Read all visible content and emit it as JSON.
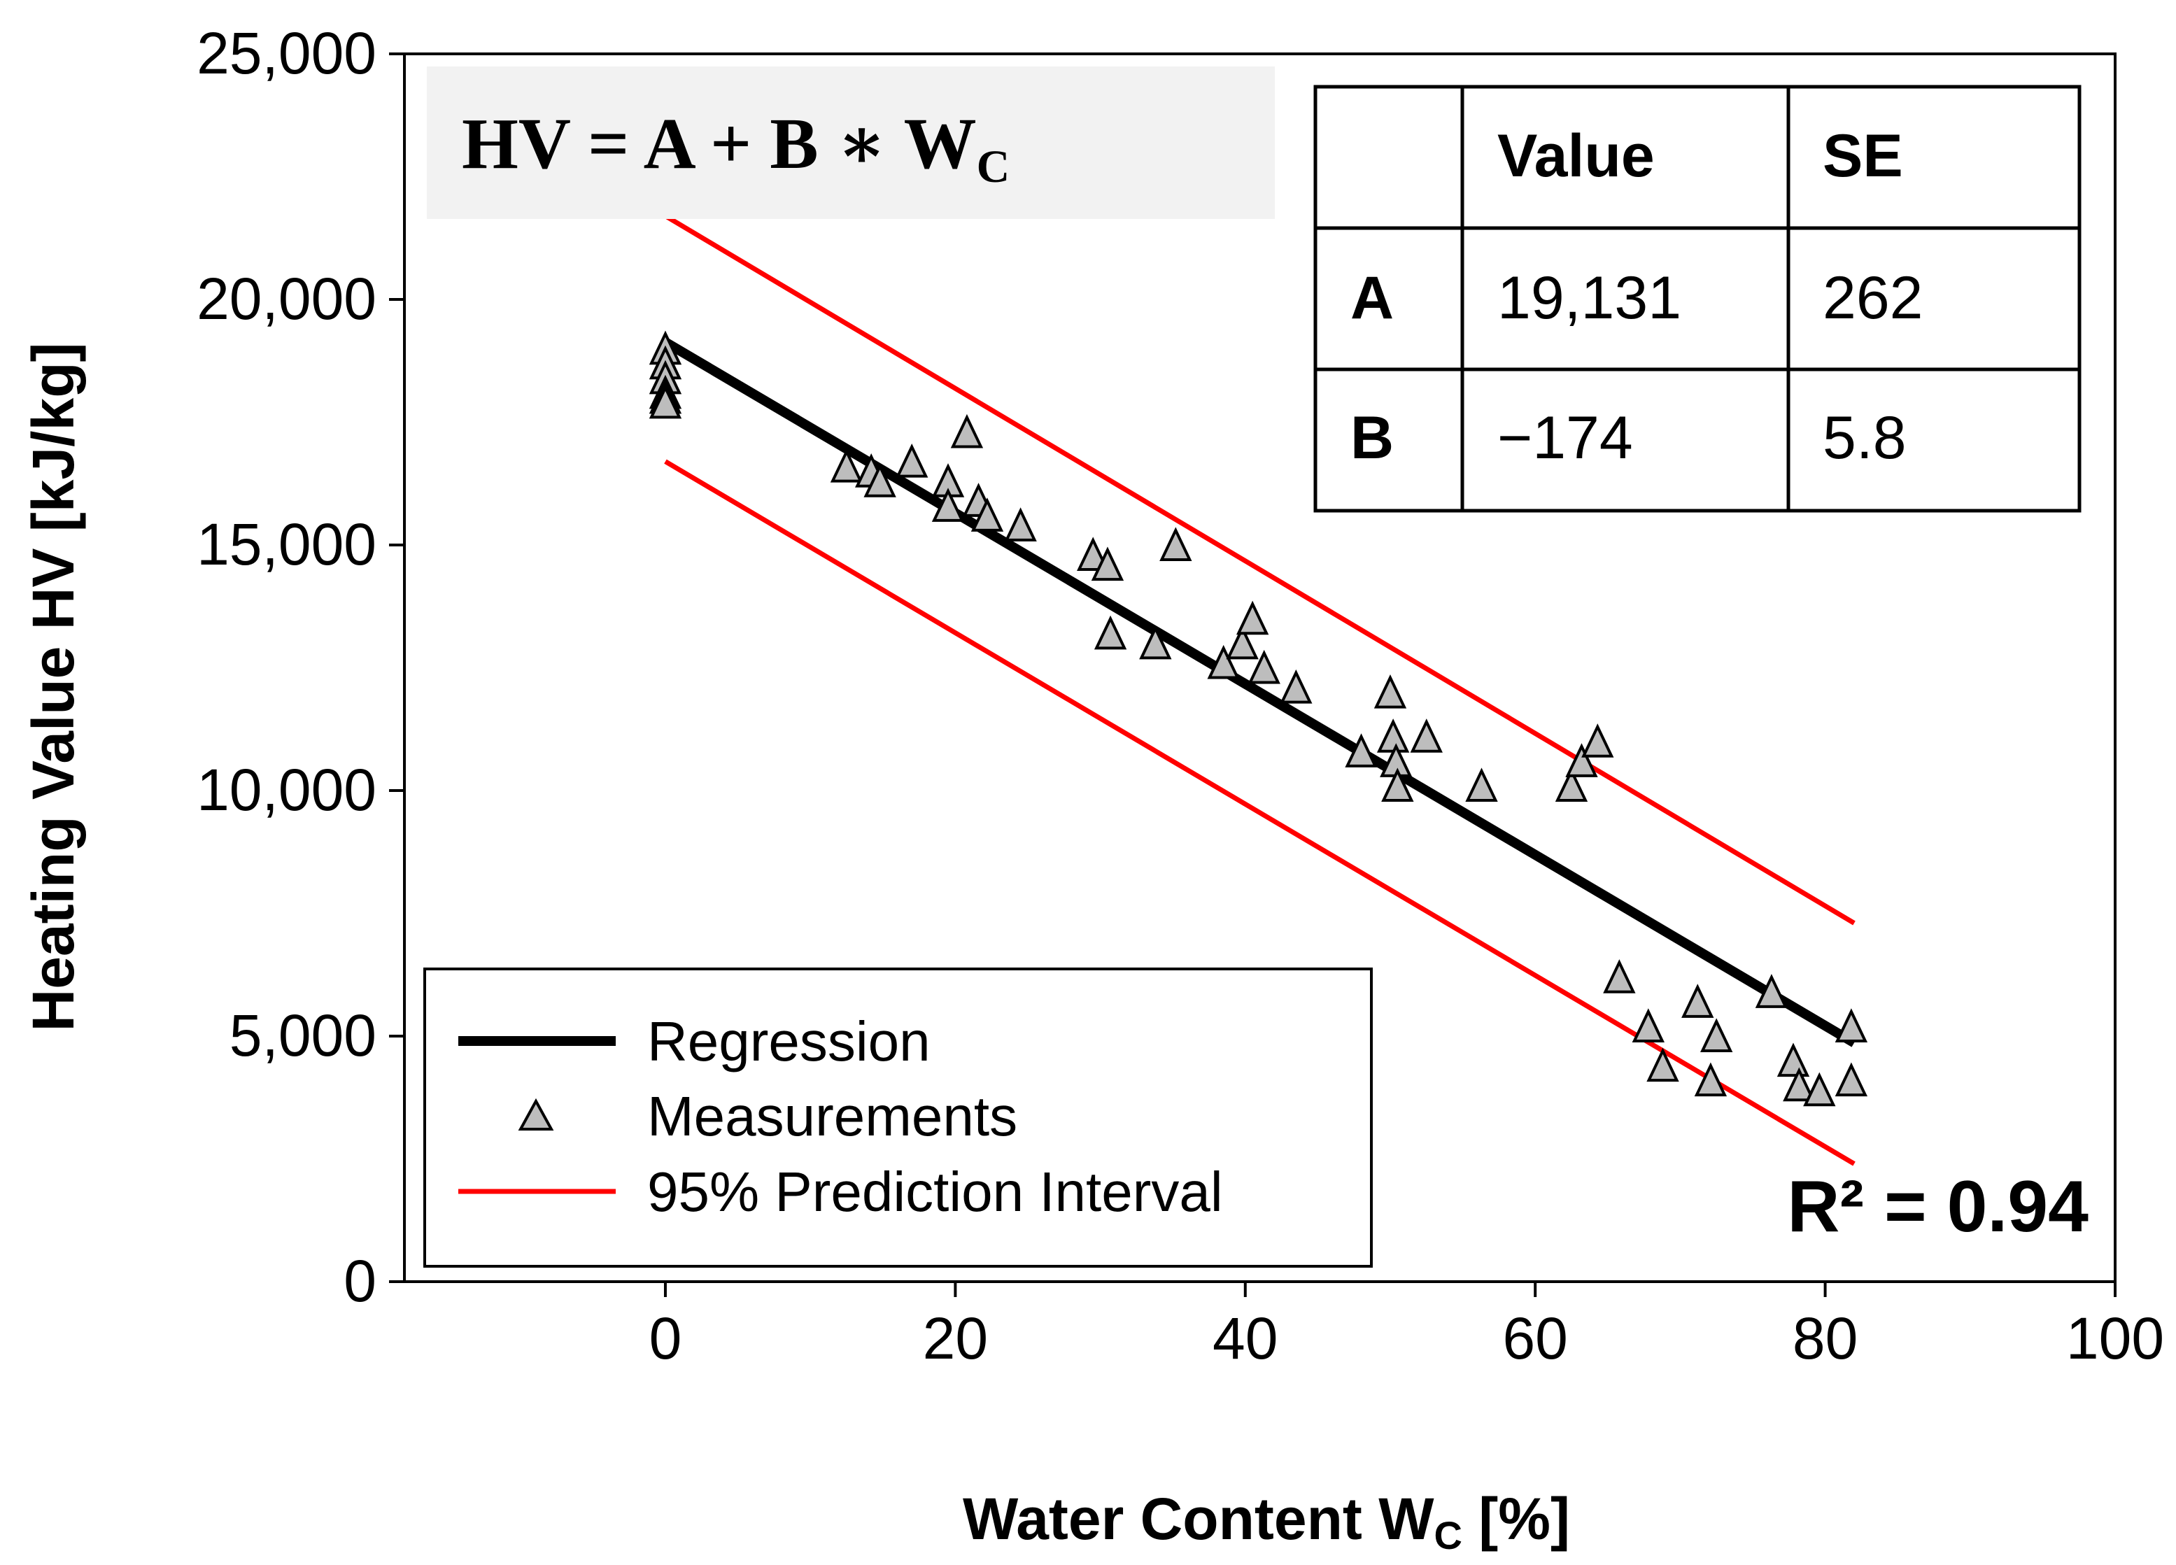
{
  "chart_data": {
    "type": "scatter",
    "xlabel": "Water Content W",
    "xlabel_sub": "C",
    "xlabel_suffix": " [%]",
    "ylabel": "Heating Value HV [kJ/kg]",
    "xlim": [
      -18,
      100
    ],
    "ylim": [
      0,
      25000
    ],
    "x_ticks": [
      0,
      20,
      40,
      60,
      80,
      100
    ],
    "x_tick_labels": [
      "0",
      "20",
      "40",
      "60",
      "80",
      "100"
    ],
    "y_ticks": [
      0,
      5000,
      10000,
      15000,
      20000,
      25000
    ],
    "y_tick_labels": [
      "0",
      "5,000",
      "10,000",
      "15,000",
      "20,000",
      "25,000"
    ],
    "equation": {
      "main": "HV = A + B ∗ W",
      "sub": "C"
    },
    "table": {
      "headers": [
        "",
        "Value",
        "SE"
      ],
      "rows": [
        [
          "A",
          "19,131",
          "262"
        ],
        [
          "B",
          "−174",
          "5.8"
        ]
      ]
    },
    "r_squared_label": "R² = 0.94",
    "legend": {
      "position": "bottom-left",
      "entries": [
        "Regression",
        "Measurements",
        "95% Prediction Interval"
      ]
    },
    "regression": {
      "x": [
        0,
        82
      ],
      "y": [
        19131,
        4863
      ],
      "color": "#000000"
    },
    "prediction_interval": {
      "upper": {
        "x": [
          0,
          82
        ],
        "y": [
          21700,
          7300
        ]
      },
      "lower": {
        "x": [
          0,
          82
        ],
        "y": [
          16700,
          2400
        ]
      },
      "color": "#ff0000"
    },
    "measurements": [
      {
        "x": 0,
        "y": 19000
      },
      {
        "x": 0,
        "y": 18700
      },
      {
        "x": 0,
        "y": 18400
      },
      {
        "x": 0,
        "y": 18100
      },
      {
        "x": 0,
        "y": 18000
      },
      {
        "x": 0,
        "y": 17900
      },
      {
        "x": 12.5,
        "y": 16600
      },
      {
        "x": 14.2,
        "y": 16500
      },
      {
        "x": 14.8,
        "y": 16300
      },
      {
        "x": 17,
        "y": 16700
      },
      {
        "x": 19.5,
        "y": 16300
      },
      {
        "x": 19.5,
        "y": 15800
      },
      {
        "x": 20.8,
        "y": 17300
      },
      {
        "x": 21.6,
        "y": 15900
      },
      {
        "x": 22.2,
        "y": 15600
      },
      {
        "x": 24.5,
        "y": 15400
      },
      {
        "x": 29.5,
        "y": 14800
      },
      {
        "x": 30.5,
        "y": 14600
      },
      {
        "x": 30.7,
        "y": 13200
      },
      {
        "x": 33.8,
        "y": 13000
      },
      {
        "x": 35.2,
        "y": 15000
      },
      {
        "x": 38.5,
        "y": 12600
      },
      {
        "x": 39.8,
        "y": 13000
      },
      {
        "x": 40.5,
        "y": 13500
      },
      {
        "x": 41.3,
        "y": 12500
      },
      {
        "x": 43.5,
        "y": 12100
      },
      {
        "x": 48,
        "y": 10800
      },
      {
        "x": 50,
        "y": 12000
      },
      {
        "x": 50.2,
        "y": 11100
      },
      {
        "x": 50.4,
        "y": 10600
      },
      {
        "x": 50.5,
        "y": 10100
      },
      {
        "x": 52.5,
        "y": 11100
      },
      {
        "x": 56.3,
        "y": 10100
      },
      {
        "x": 62.5,
        "y": 10100
      },
      {
        "x": 63.2,
        "y": 10600
      },
      {
        "x": 64.3,
        "y": 11000
      },
      {
        "x": 65.8,
        "y": 6200
      },
      {
        "x": 67.8,
        "y": 5200
      },
      {
        "x": 68.8,
        "y": 4400
      },
      {
        "x": 71.2,
        "y": 5700
      },
      {
        "x": 72.1,
        "y": 4100
      },
      {
        "x": 72.5,
        "y": 5000
      },
      {
        "x": 76.3,
        "y": 5900
      },
      {
        "x": 77.8,
        "y": 4500
      },
      {
        "x": 78.2,
        "y": 4000
      },
      {
        "x": 79.6,
        "y": 3900
      },
      {
        "x": 81.8,
        "y": 5200
      },
      {
        "x": 81.8,
        "y": 4100
      }
    ],
    "colors": {
      "marker_fill": "#bdbdbd",
      "marker_stroke": "#000000",
      "equation_box": "#f2f2f2",
      "regression": "#000000",
      "interval": "#ff0000"
    }
  }
}
